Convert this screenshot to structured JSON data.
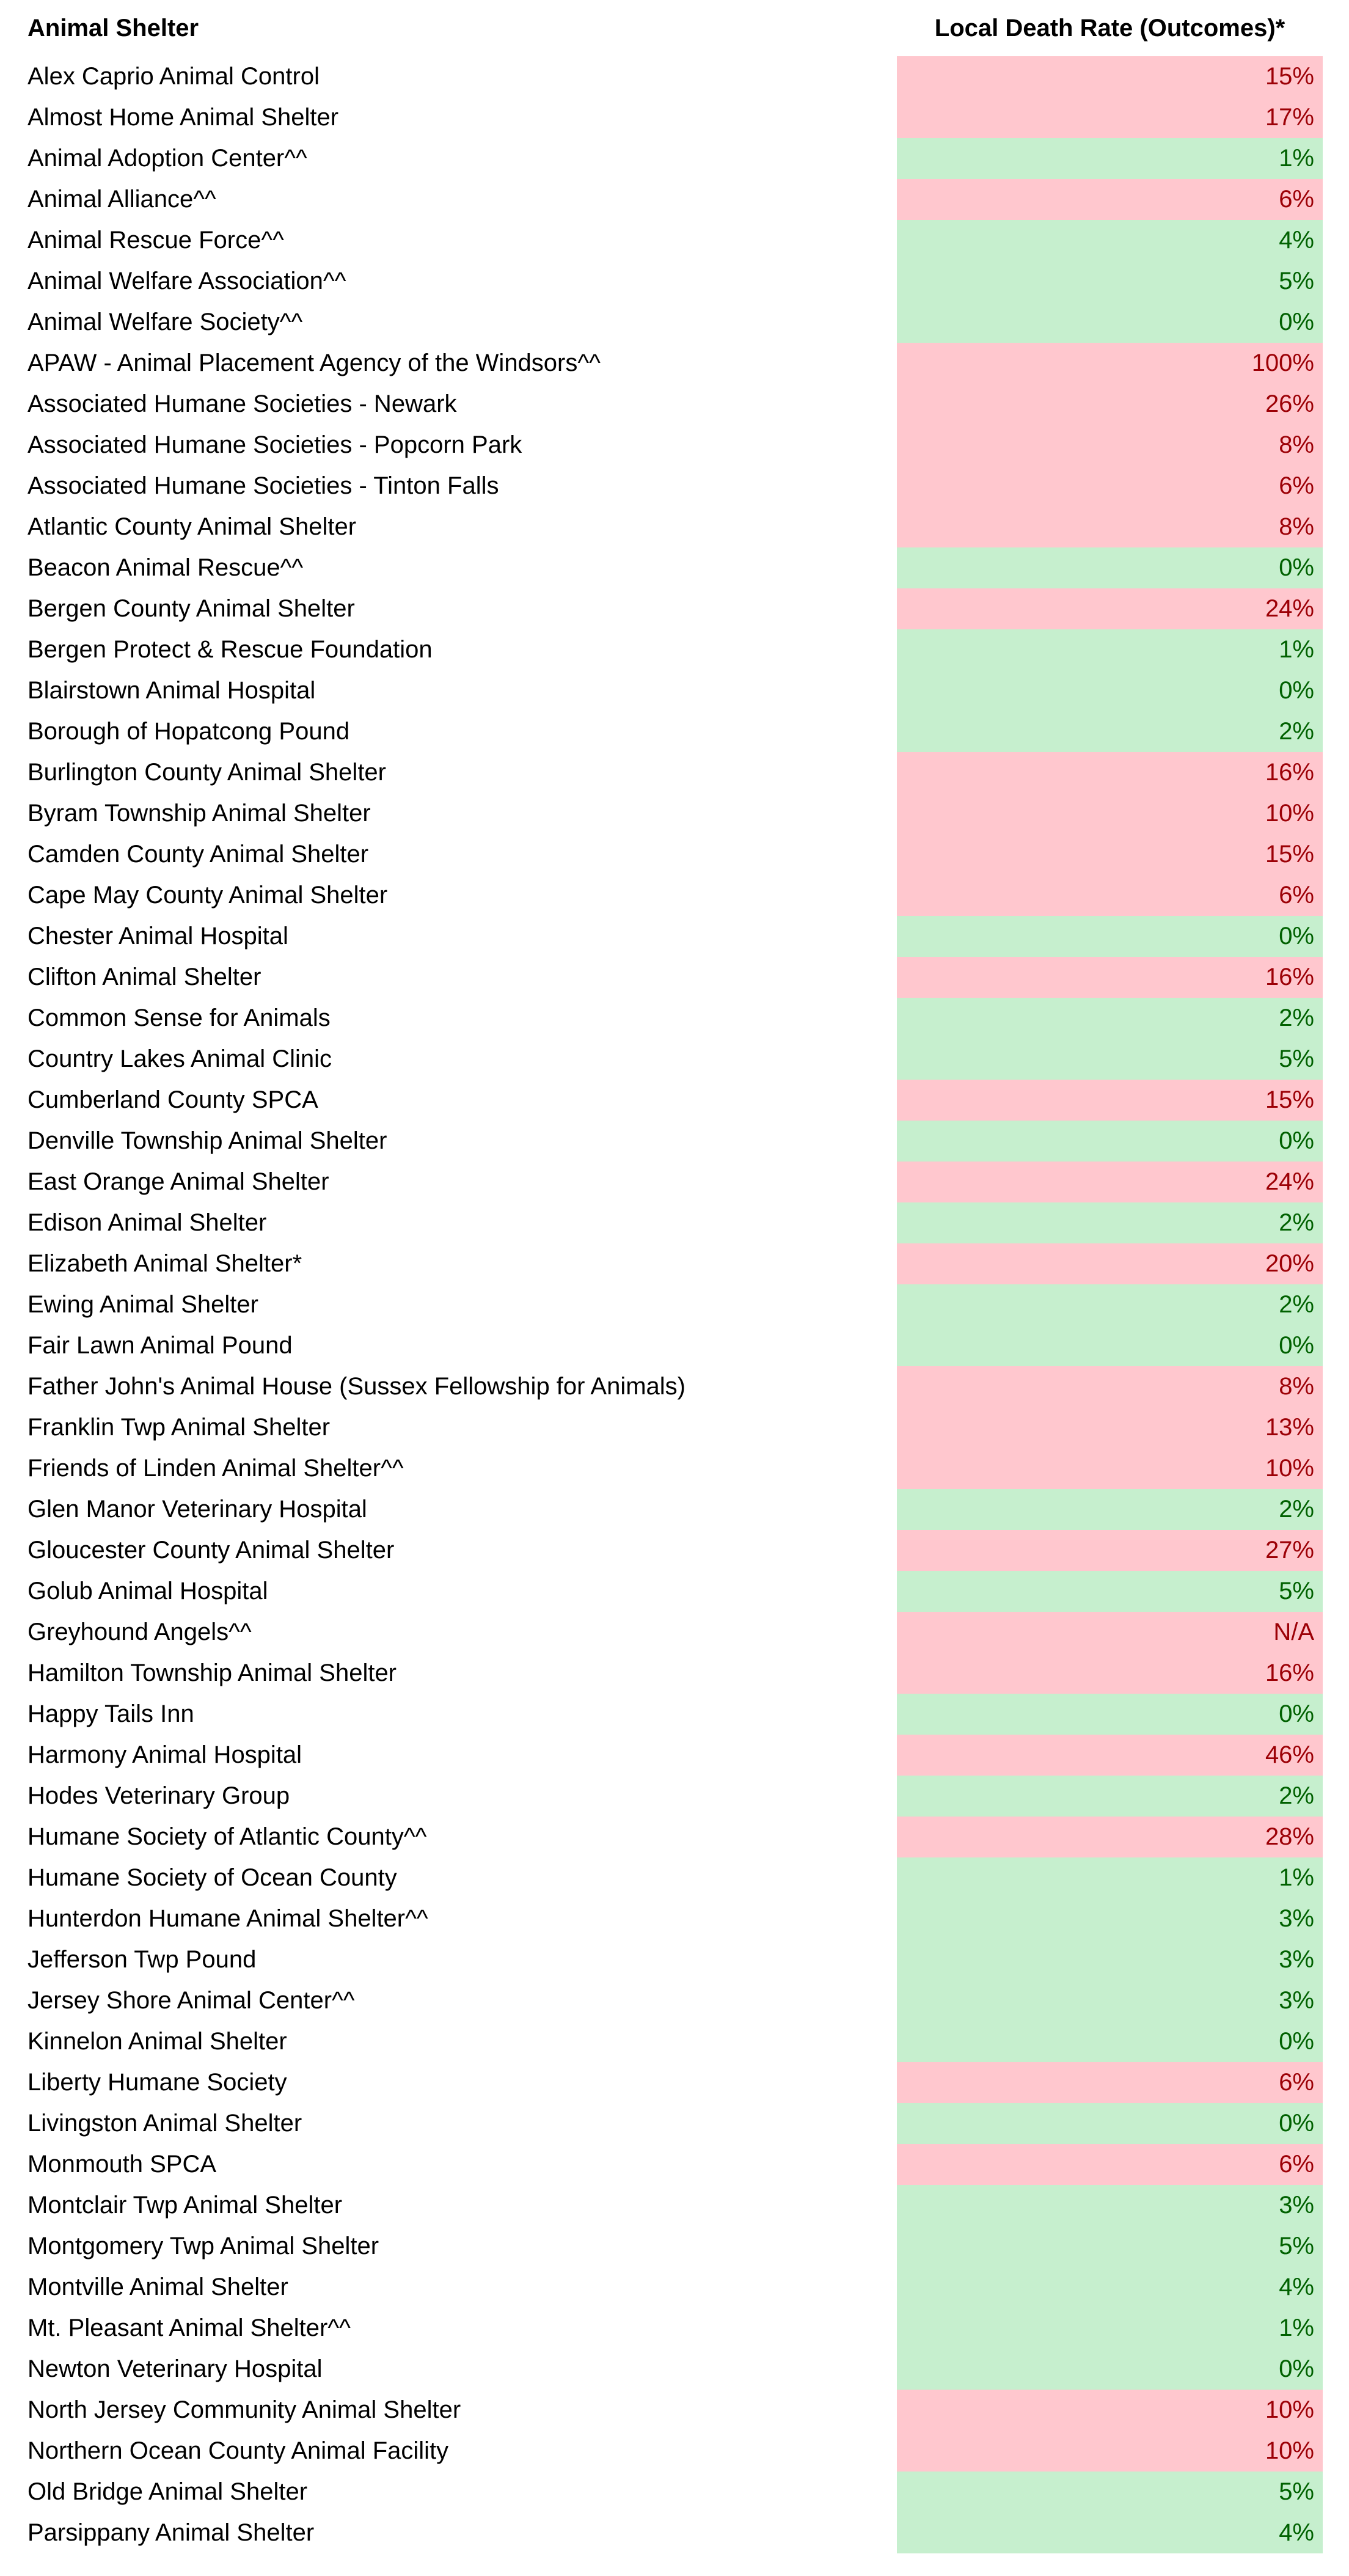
{
  "header": {
    "shelter_label": "Animal Shelter",
    "rate_label": "Local Death Rate (Outcomes)*"
  },
  "colors": {
    "bad_bg": "#FFC7CE",
    "bad_text": "#9C0006",
    "good_bg": "#C6EFCE",
    "good_text": "#006100"
  },
  "chart_data": {
    "type": "table",
    "title": "",
    "columns": [
      "Animal Shelter",
      "Local Death Rate (Outcomes)*"
    ],
    "legend": {
      "bad": "red highlight (high death rate)",
      "good": "green highlight (low death rate)"
    },
    "rows": [
      {
        "name": "Alex Caprio Animal Control",
        "value": "15%",
        "status": "bad"
      },
      {
        "name": "Almost Home Animal Shelter",
        "value": "17%",
        "status": "bad"
      },
      {
        "name": "Animal Adoption Center^^",
        "value": "1%",
        "status": "good"
      },
      {
        "name": "Animal Alliance^^",
        "value": "6%",
        "status": "bad"
      },
      {
        "name": "Animal Rescue Force^^",
        "value": "4%",
        "status": "good"
      },
      {
        "name": "Animal Welfare Association^^",
        "value": "5%",
        "status": "good"
      },
      {
        "name": "Animal Welfare Society^^",
        "value": "0%",
        "status": "good"
      },
      {
        "name": "APAW - Animal Placement Agency of the Windsors^^",
        "value": "100%",
        "status": "bad"
      },
      {
        "name": "Associated Humane Societies - Newark",
        "value": "26%",
        "status": "bad"
      },
      {
        "name": "Associated Humane Societies - Popcorn Park",
        "value": "8%",
        "status": "bad"
      },
      {
        "name": "Associated Humane Societies - Tinton Falls",
        "value": "6%",
        "status": "bad"
      },
      {
        "name": "Atlantic County Animal Shelter",
        "value": "8%",
        "status": "bad"
      },
      {
        "name": "Beacon Animal Rescue^^",
        "value": "0%",
        "status": "good"
      },
      {
        "name": "Bergen County Animal Shelter",
        "value": "24%",
        "status": "bad"
      },
      {
        "name": "Bergen Protect & Rescue Foundation",
        "value": "1%",
        "status": "good"
      },
      {
        "name": "Blairstown Animal Hospital",
        "value": "0%",
        "status": "good"
      },
      {
        "name": "Borough of Hopatcong Pound",
        "value": "2%",
        "status": "good"
      },
      {
        "name": "Burlington County Animal Shelter",
        "value": "16%",
        "status": "bad"
      },
      {
        "name": "Byram Township Animal Shelter",
        "value": "10%",
        "status": "bad"
      },
      {
        "name": "Camden County Animal Shelter",
        "value": "15%",
        "status": "bad"
      },
      {
        "name": "Cape May County Animal Shelter",
        "value": "6%",
        "status": "bad"
      },
      {
        "name": "Chester Animal Hospital",
        "value": "0%",
        "status": "good"
      },
      {
        "name": "Clifton Animal Shelter",
        "value": "16%",
        "status": "bad"
      },
      {
        "name": "Common Sense for Animals",
        "value": "2%",
        "status": "good"
      },
      {
        "name": "Country Lakes Animal Clinic",
        "value": "5%",
        "status": "good"
      },
      {
        "name": "Cumberland County SPCA",
        "value": "15%",
        "status": "bad"
      },
      {
        "name": "Denville Township Animal Shelter",
        "value": "0%",
        "status": "good"
      },
      {
        "name": "East Orange Animal Shelter",
        "value": "24%",
        "status": "bad"
      },
      {
        "name": "Edison Animal Shelter",
        "value": "2%",
        "status": "good"
      },
      {
        "name": "Elizabeth Animal Shelter*",
        "value": "20%",
        "status": "bad"
      },
      {
        "name": "Ewing Animal Shelter",
        "value": "2%",
        "status": "good"
      },
      {
        "name": "Fair Lawn Animal Pound",
        "value": "0%",
        "status": "good"
      },
      {
        "name": "Father John's Animal House (Sussex Fellowship for Animals)",
        "value": "8%",
        "status": "bad"
      },
      {
        "name": "Franklin Twp Animal Shelter",
        "value": "13%",
        "status": "bad"
      },
      {
        "name": "Friends of Linden Animal Shelter^^",
        "value": "10%",
        "status": "bad"
      },
      {
        "name": "Glen Manor Veterinary Hospital",
        "value": "2%",
        "status": "good"
      },
      {
        "name": "Gloucester County Animal Shelter",
        "value": "27%",
        "status": "bad"
      },
      {
        "name": "Golub Animal Hospital",
        "value": "5%",
        "status": "good"
      },
      {
        "name": "Greyhound Angels^^",
        "value": "N/A",
        "status": "bad"
      },
      {
        "name": "Hamilton Township Animal Shelter",
        "value": "16%",
        "status": "bad"
      },
      {
        "name": "Happy Tails Inn",
        "value": "0%",
        "status": "good"
      },
      {
        "name": "Harmony Animal Hospital",
        "value": "46%",
        "status": "bad"
      },
      {
        "name": "Hodes Veterinary Group",
        "value": "2%",
        "status": "good"
      },
      {
        "name": "Humane Society of Atlantic County^^",
        "value": "28%",
        "status": "bad"
      },
      {
        "name": "Humane Society of Ocean County",
        "value": "1%",
        "status": "good"
      },
      {
        "name": "Hunterdon Humane Animal Shelter^^",
        "value": "3%",
        "status": "good"
      },
      {
        "name": "Jefferson Twp Pound",
        "value": "3%",
        "status": "good"
      },
      {
        "name": "Jersey Shore Animal Center^^",
        "value": "3%",
        "status": "good"
      },
      {
        "name": "Kinnelon Animal Shelter",
        "value": "0%",
        "status": "good"
      },
      {
        "name": "Liberty Humane Society",
        "value": "6%",
        "status": "bad"
      },
      {
        "name": "Livingston Animal Shelter",
        "value": "0%",
        "status": "good"
      },
      {
        "name": "Monmouth SPCA",
        "value": "6%",
        "status": "bad"
      },
      {
        "name": "Montclair Twp Animal Shelter",
        "value": "3%",
        "status": "good"
      },
      {
        "name": "Montgomery Twp Animal Shelter",
        "value": "5%",
        "status": "good"
      },
      {
        "name": "Montville Animal Shelter",
        "value": "4%",
        "status": "good"
      },
      {
        "name": "Mt. Pleasant Animal Shelter^^",
        "value": "1%",
        "status": "good"
      },
      {
        "name": "Newton Veterinary Hospital",
        "value": "0%",
        "status": "good"
      },
      {
        "name": "North Jersey Community Animal Shelter",
        "value": "10%",
        "status": "bad"
      },
      {
        "name": "Northern Ocean County Animal Facility",
        "value": "10%",
        "status": "bad"
      },
      {
        "name": "Old Bridge Animal Shelter",
        "value": "5%",
        "status": "good"
      },
      {
        "name": "Parsippany Animal Shelter",
        "value": "4%",
        "status": "good"
      }
    ]
  }
}
